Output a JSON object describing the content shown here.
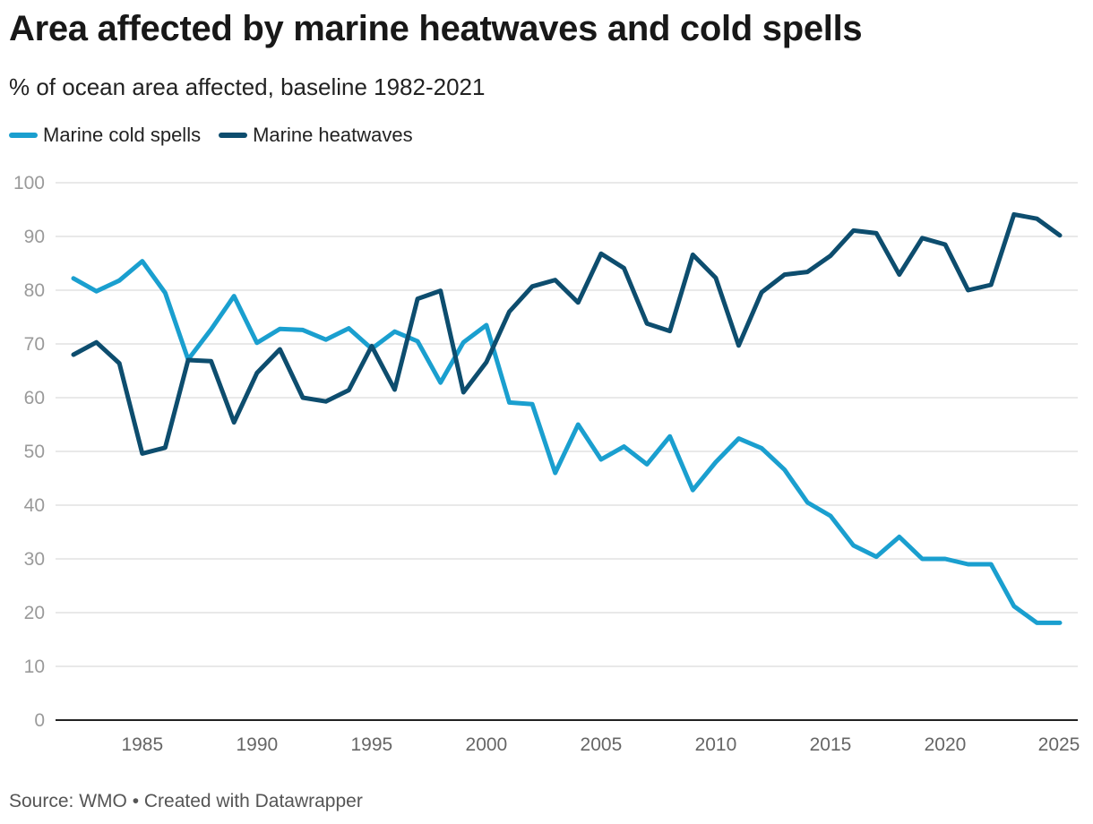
{
  "header": {
    "title": "Area affected by marine heatwaves and cold spells",
    "subtitle": "% of ocean area affected, baseline 1982-2021"
  },
  "legend": [
    {
      "label": "Marine cold spells",
      "color": "#1a9fcf"
    },
    {
      "label": "Marine heatwaves",
      "color": "#0d4d6e"
    }
  ],
  "footer": {
    "source": "Source: WMO • Created with Datawrapper"
  },
  "chart_data": {
    "type": "line",
    "title": "Area affected by marine heatwaves and cold spells",
    "subtitle": "% of ocean area affected, baseline 1982-2021",
    "xlabel": "",
    "ylabel": "",
    "x": [
      1982,
      1983,
      1984,
      1985,
      1986,
      1987,
      1988,
      1989,
      1990,
      1991,
      1992,
      1993,
      1994,
      1995,
      1996,
      1997,
      1998,
      1999,
      2000,
      2001,
      2002,
      2003,
      2004,
      2005,
      2006,
      2007,
      2008,
      2009,
      2010,
      2011,
      2012,
      2013,
      2014,
      2015,
      2016,
      2017,
      2018,
      2019,
      2020,
      2021,
      2022,
      2023,
      2024,
      2025
    ],
    "xlim": [
      1982,
      2025
    ],
    "ylim": [
      0,
      100
    ],
    "yticks": [
      0,
      10,
      20,
      30,
      40,
      50,
      60,
      70,
      80,
      90,
      100
    ],
    "xticks": [
      1985,
      1990,
      1995,
      2000,
      2005,
      2010,
      2015,
      2020,
      2025
    ],
    "grid": true,
    "legend_position": "top-left",
    "series": [
      {
        "name": "Marine cold spells",
        "color": "#1a9fcf",
        "values": [
          82.2,
          79.8,
          81.8,
          85.4,
          79.5,
          67.1,
          72.7,
          78.9,
          70.2,
          72.8,
          72.6,
          70.8,
          72.9,
          69.1,
          72.3,
          70.5,
          62.8,
          70.3,
          73.5,
          59.1,
          58.8,
          46.0,
          55.0,
          48.5,
          50.9,
          47.6,
          52.8,
          42.8,
          48.0,
          52.4,
          50.6,
          46.6,
          40.5,
          38.0,
          32.5,
          30.4,
          34.1,
          30.0,
          30.0,
          29.0,
          29.0,
          21.2,
          18.1,
          18.1
        ]
      },
      {
        "name": "Marine heatwaves",
        "color": "#0d4d6e",
        "values": [
          68.0,
          70.3,
          66.4,
          49.6,
          50.7,
          67.0,
          66.8,
          55.4,
          64.6,
          69.0,
          60.0,
          59.3,
          61.4,
          69.6,
          61.5,
          78.4,
          79.9,
          61.0,
          66.6,
          76.0,
          80.7,
          81.9,
          77.7,
          86.8,
          84.1,
          73.8,
          72.4,
          86.6,
          82.3,
          69.7,
          79.6,
          82.9,
          83.4,
          86.4,
          91.1,
          90.6,
          82.9,
          89.7,
          88.5,
          80.0,
          81.0,
          94.1,
          93.3,
          90.2
        ]
      }
    ]
  }
}
